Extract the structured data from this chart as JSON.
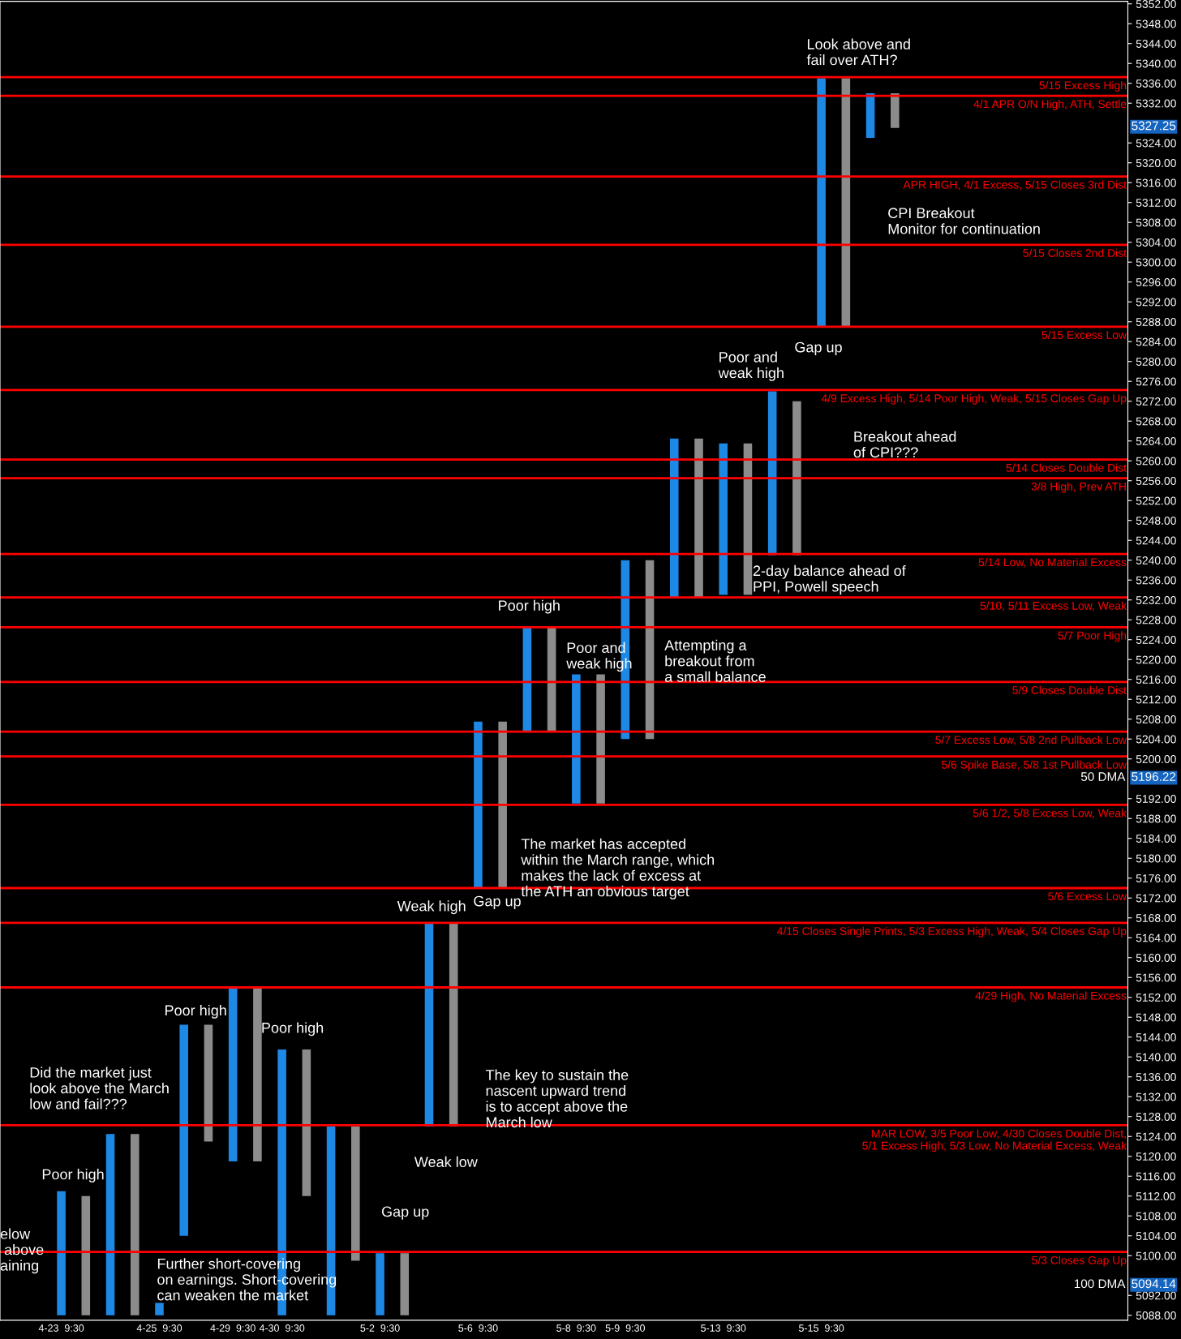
{
  "chart_data": {
    "type": "bar",
    "ylim": [
      5087,
      5352.5
    ],
    "yticks": [
      {
        "value": 5088,
        "label": "5088.00"
      },
      {
        "value": 5092,
        "label": "5092.00"
      },
      {
        "value": 5100,
        "label": "5100.00"
      },
      {
        "value": 5104,
        "label": "5104.00"
      },
      {
        "value": 5108,
        "label": "5108.00"
      },
      {
        "value": 5112,
        "label": "5112.00"
      },
      {
        "value": 5116,
        "label": "5116.00"
      },
      {
        "value": 5120,
        "label": "5120.00"
      },
      {
        "value": 5124,
        "label": "5124.00"
      },
      {
        "value": 5128,
        "label": "5128.00"
      },
      {
        "value": 5132,
        "label": "5132.00"
      },
      {
        "value": 5136,
        "label": "5136.00"
      },
      {
        "value": 5140,
        "label": "5140.00"
      },
      {
        "value": 5144,
        "label": "5144.00"
      },
      {
        "value": 5148,
        "label": "5148.00"
      },
      {
        "value": 5152,
        "label": "5152.00"
      },
      {
        "value": 5156,
        "label": "5156.00"
      },
      {
        "value": 5160,
        "label": "5160.00"
      },
      {
        "value": 5164,
        "label": "5164.00"
      },
      {
        "value": 5168,
        "label": "5168.00"
      },
      {
        "value": 5172,
        "label": "5172.00"
      },
      {
        "value": 5176,
        "label": "5176.00"
      },
      {
        "value": 5180,
        "label": "5180.00"
      },
      {
        "value": 5184,
        "label": "5184.00"
      },
      {
        "value": 5188,
        "label": "5188.00"
      },
      {
        "value": 5192,
        "label": "5192.00"
      },
      {
        "value": 5200,
        "label": "5200.00"
      },
      {
        "value": 5204,
        "label": "5204.00"
      },
      {
        "value": 5208,
        "label": "5208.00"
      },
      {
        "value": 5212,
        "label": "5212.00"
      },
      {
        "value": 5216,
        "label": "5216.00"
      },
      {
        "value": 5220,
        "label": "5220.00"
      },
      {
        "value": 5224,
        "label": "5224.00"
      },
      {
        "value": 5228,
        "label": "5228.00"
      },
      {
        "value": 5232,
        "label": "5232.00"
      },
      {
        "value": 5236,
        "label": "5236.00"
      },
      {
        "value": 5240,
        "label": "5240.00"
      },
      {
        "value": 5244,
        "label": "5244.00"
      },
      {
        "value": 5248,
        "label": "5248.00"
      },
      {
        "value": 5252,
        "label": "5252.00"
      },
      {
        "value": 5256,
        "label": "5256.00"
      },
      {
        "value": 5260,
        "label": "5260.00"
      },
      {
        "value": 5264,
        "label": "5264.00"
      },
      {
        "value": 5268,
        "label": "5268.00"
      },
      {
        "value": 5272,
        "label": "5272.00"
      },
      {
        "value": 5276,
        "label": "5276.00"
      },
      {
        "value": 5280,
        "label": "5280.00"
      },
      {
        "value": 5284,
        "label": "5284.00"
      },
      {
        "value": 5288,
        "label": "5288.00"
      },
      {
        "value": 5292,
        "label": "5292.00"
      },
      {
        "value": 5296,
        "label": "5296.00"
      },
      {
        "value": 5300,
        "label": "5300.00"
      },
      {
        "value": 5304,
        "label": "5304.00"
      },
      {
        "value": 5308,
        "label": "5308.00"
      },
      {
        "value": 5312,
        "label": "5312.00"
      },
      {
        "value": 5316,
        "label": "5316.00"
      },
      {
        "value": 5320,
        "label": "5320.00"
      },
      {
        "value": 5324,
        "label": "5324.00"
      },
      {
        "value": 5332,
        "label": "5332.00"
      },
      {
        "value": 5336,
        "label": "5336.00"
      },
      {
        "value": 5340,
        "label": "5340.00"
      },
      {
        "value": 5344,
        "label": "5344.00"
      },
      {
        "value": 5348,
        "label": "5348.00"
      },
      {
        "value": 5352,
        "label": "5352.00"
      }
    ],
    "categories": [
      null,
      null,
      "4-23  9:30",
      null,
      null,
      null,
      "4-25  9:30",
      null,
      null,
      "4-29  9:30",
      null,
      "4-30  9:30",
      null,
      null,
      null,
      "5-2  9:30",
      null,
      null,
      null,
      "5-6  9:30",
      null,
      null,
      null,
      "5-8  9:30",
      null,
      "5-9  9:30",
      null,
      null,
      null,
      "5-13  9:30",
      null,
      null,
      null,
      "5-15  9:30",
      null,
      null,
      null,
      null,
      null,
      null,
      null,
      null,
      null,
      null,
      null,
      null
    ],
    "base": [
      null,
      null,
      5088,
      5088,
      5088,
      5088,
      5088,
      5104,
      5123,
      5119,
      5119,
      5088,
      5112,
      5088,
      5099,
      5088,
      5088,
      5126,
      5126,
      5174,
      5174,
      5205.5,
      5205.5,
      5191,
      5191,
      5204,
      5204,
      5232.5,
      5232.5,
      5233,
      5233,
      5241,
      5241,
      5287,
      5287,
      5325,
      5327,
      null,
      null,
      null,
      null,
      null,
      null,
      null,
      null,
      null
    ],
    "values": [
      null,
      null,
      25,
      24,
      36.5,
      36.5,
      2.5,
      42.5,
      23.5,
      35,
      35,
      53.5,
      29.5,
      38,
      27,
      12.5,
      12.5,
      41,
      41,
      33.5,
      33.5,
      21,
      21,
      26,
      26,
      36,
      36,
      32,
      32,
      30.5,
      30.5,
      33,
      31,
      50,
      50,
      9,
      7,
      null,
      null,
      null,
      null,
      null,
      null,
      null,
      null,
      null
    ],
    "colors": [
      null,
      null,
      "#1e88e5",
      "#8c8c8c",
      "#1e88e5",
      "#8c8c8c",
      "#1e88e5",
      "#1e88e5",
      "#8c8c8c",
      "#1e88e5",
      "#8c8c8c",
      "#1e88e5",
      "#8c8c8c",
      "#1e88e5",
      "#8c8c8c",
      "#1e88e5",
      "#8c8c8c",
      "#1e88e5",
      "#8c8c8c",
      "#1e88e5",
      "#8c8c8c",
      "#1e88e5",
      "#8c8c8c",
      "#1e88e5",
      "#8c8c8c",
      "#1e88e5",
      "#8c8c8c",
      "#1e88e5",
      "#8c8c8c",
      "#1e88e5",
      "#8c8c8c",
      "#1e88e5",
      "#8c8c8c",
      "#1e88e5",
      "#8c8c8c",
      "#1e88e5",
      "#8c8c8c",
      null,
      null,
      null,
      null,
      null,
      null,
      null,
      null,
      null
    ],
    "ref_lines": [
      {
        "axis": "y",
        "value": 5337.25,
        "label": "5/15 Excess High",
        "color": "#ff0000"
      },
      {
        "axis": "y",
        "value": 5333.5,
        "label": "4/1 APR O/N High, ATH, Settle",
        "color": "#ff0000"
      },
      {
        "axis": "y",
        "value": 5317.25,
        "label": "APR HIGH, 4/1 Excess, 5/15 Closes 3rd Dist",
        "color": "#ff0000"
      },
      {
        "axis": "y",
        "value": 5303.5,
        "label": "5/15 Closes 2nd Dist",
        "color": "#ff0000"
      },
      {
        "axis": "y",
        "value": 5287,
        "label": "5/15 Excess Low",
        "color": "#ff0000"
      },
      {
        "axis": "y",
        "value": 5274.25,
        "label": "4/9 Excess High, 5/14 Poor High, Weak, 5/15 Closes Gap Up",
        "color": "#ff0000"
      },
      {
        "axis": "y",
        "value": 5260.25,
        "label": "5/14 Closes Double Dist",
        "color": "#ff0000"
      },
      {
        "axis": "y",
        "value": 5256.5,
        "label": "3/8 High, Prev ATH",
        "color": "#ff0000"
      },
      {
        "axis": "y",
        "value": 5241.25,
        "label": "5/14 Low, No Material Excess",
        "color": "#ff0000"
      },
      {
        "axis": "y",
        "value": 5232.5,
        "label": "5/10, 5/11 Excess Low, Weak",
        "color": "#ff0000"
      },
      {
        "axis": "y",
        "value": 5226.5,
        "label": "5/7 Poor High",
        "color": "#ff0000"
      },
      {
        "axis": "y",
        "value": 5215.5,
        "label": "5/9 Closes Double Dist",
        "color": "#ff0000"
      },
      {
        "axis": "y",
        "value": 5205.5,
        "label": "5/7 Excess Low, 5/8 2nd Pullback Low",
        "color": "#ff0000"
      },
      {
        "axis": "y",
        "value": 5200.5,
        "label": "5/6 Spike Base, 5/8 1st Pullback Low",
        "color": "#ff0000"
      },
      {
        "axis": "y",
        "value": 5190.75,
        "label": "5/6 1/2, 5/8 Excess Low, Weak",
        "color": "#ff0000"
      },
      {
        "axis": "y",
        "value": 5174,
        "label": "5/6 Excess Low",
        "color": "#ff0000"
      },
      {
        "axis": "y",
        "value": 5167,
        "label": "4/15 Closes Single Prints, 5/3 Excess High, Weak, 5/4 Closes Gap Up",
        "color": "#ff0000"
      },
      {
        "axis": "y",
        "value": 5154,
        "label": "4/29 High, No Material Excess",
        "color": "#ff0000"
      },
      {
        "axis": "y",
        "value": 5126.25,
        "label": "MAR LOW, 3/5 Poor Low, 4/30 Closes Double Dist,\n5/1 Excess High, 5/3 Low, No Material Excess, Weak",
        "color": "#ff0000"
      },
      {
        "axis": "y",
        "value": 5100.75,
        "label": "5/3 Closes Gap Up",
        "color": "#ff0000"
      }
    ],
    "annotations": [
      "Look above and\nfail over ATH?",
      "CPI Breakout\nMonitor for continuation",
      "Poor and\nweak high",
      "Gap up",
      "Breakout ahead\nof CPI???",
      "2-day balance ahead of\nPPI, Powell speech",
      "Poor high",
      "Poor and\nweak high",
      "Attempting a\nbreakout from\na small balance",
      "The market has accepted\nwithin the March range, which\nmakes the lack of excess at\nthe ATH an obvious target",
      "Weak high",
      "Gap up",
      "Poor high",
      "Poor high",
      "Did the market just\nlook above the March\nlow and fail???",
      "The key to sustain the\nnascent upward trend\nis to accept above the\nMarch low",
      "Weak low",
      "Gap up",
      "Poor high",
      "Further short-covering\non earnings. Short-covering\ncan weaken the market",
      "elow\n above\naining",
      "50 DMA",
      "100 DMA",
      "5196.22",
      "5094.14",
      "5327.25"
    ]
  }
}
